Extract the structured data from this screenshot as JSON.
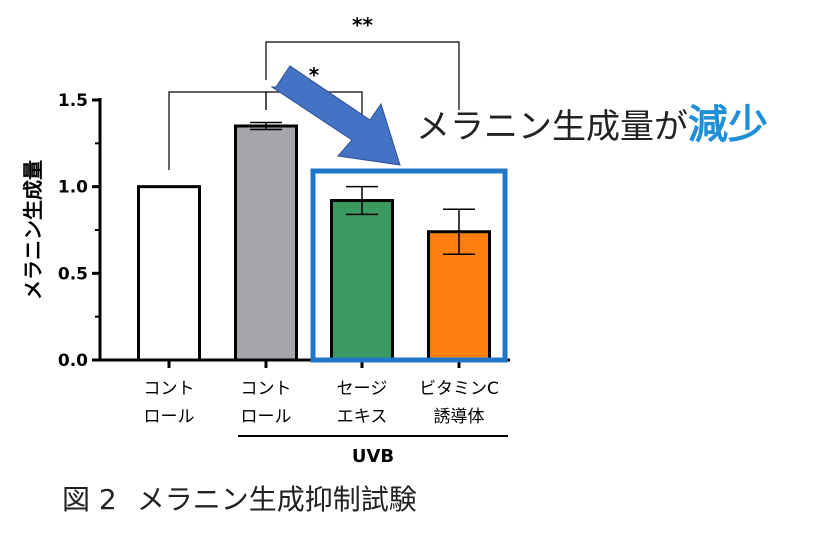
{
  "chart_data": {
    "type": "bar",
    "categories": [
      [
        "コント",
        "ロール"
      ],
      [
        "コント",
        "ロール"
      ],
      [
        "セージ",
        "エキス"
      ],
      [
        "ビタミンC",
        "誘導体"
      ]
    ],
    "values": [
      1.0,
      1.35,
      0.92,
      0.74
    ],
    "errors": [
      0,
      0.02,
      0.08,
      0.13
    ],
    "bar_colors": [
      "#ffffff",
      "#a6a5ab",
      "#3a9a62",
      "#ff7f0e"
    ],
    "ylabel": "メラニン生成量",
    "ylim": [
      0,
      1.5
    ],
    "yticks": [
      "0.0",
      "0.5",
      "1.0",
      "1.5"
    ],
    "group_label": "UVB",
    "significance": [
      {
        "label": "**",
        "from": 1,
        "to": 3
      },
      {
        "label": "*",
        "from": 1,
        "to": 2
      },
      {
        "label": "",
        "from": 0,
        "to": 1
      }
    ],
    "highlight_box_color": "#1f77c8",
    "arrow_color": "#4472c4"
  },
  "callout": {
    "text": "メラニン生成量が",
    "emphasis": "減少"
  },
  "caption": {
    "figure_no": "図 2",
    "title": "メラニン生成抑制試験"
  }
}
